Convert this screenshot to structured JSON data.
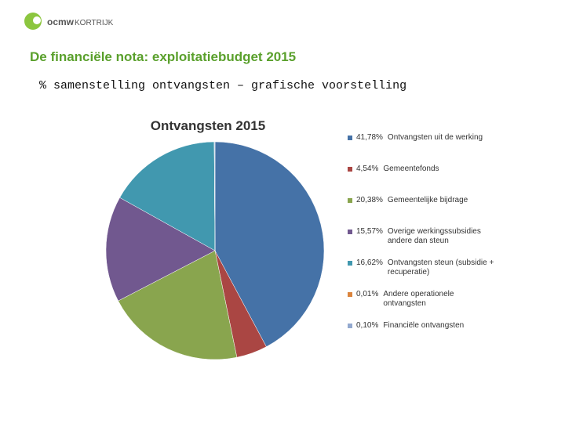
{
  "header": {
    "logo_org": "ocmw",
    "logo_city": "KORTRIJK",
    "title": "De financiële nota: exploitatiebudget 2015",
    "subtitle": "% samenstelling ontvangsten – grafische voorstelling"
  },
  "chart_data": {
    "type": "pie",
    "title": "Ontvangsten 2015",
    "categories": [
      "Ontvangsten uit de werking",
      "Gemeentefonds",
      "Gemeentelijke bijdrage",
      "Overige werkingssubsidies andere dan steun",
      "Ontvangsten steun (subsidie + recuperatie)",
      "Andere operationele ontvangsten",
      "Financiële ontvangsten"
    ],
    "values": [
      41.78,
      4.54,
      20.38,
      15.57,
      16.62,
      0.01,
      0.1
    ],
    "value_labels": [
      "41,78%",
      "4,54%",
      "20,38%",
      "15,57%",
      "16,62%",
      "0,01%",
      "0,10%"
    ],
    "colors": [
      "#4572a7",
      "#aa4643",
      "#89a54e",
      "#71588f",
      "#4198af",
      "#db843d",
      "#93a9cf"
    ],
    "legend": "right"
  }
}
